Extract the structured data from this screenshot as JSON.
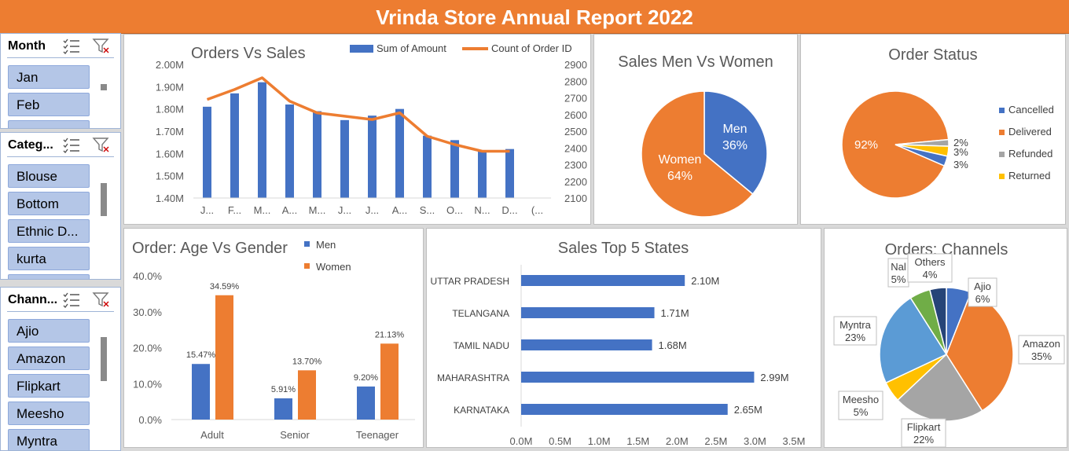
{
  "report_title": "Vrinda Store Annual Report 2022",
  "slicers": {
    "month": {
      "title": "Month",
      "items": [
        "Jan",
        "Feb"
      ]
    },
    "category": {
      "title": "Categ...",
      "items": [
        "Blouse",
        "Bottom",
        "Ethnic D...",
        "kurta"
      ]
    },
    "channel": {
      "title": "Chann...",
      "items": [
        "Ajio",
        "Amazon",
        "Flipkart",
        "Meesho",
        "Myntra"
      ]
    }
  },
  "icons": {
    "multi_select": "multi-select-icon",
    "clear_filter": "clear-filter-icon"
  },
  "colors": {
    "blue": "#4472c4",
    "orange": "#ed7d31",
    "gray": "#a5a5a5",
    "yellow": "#ffc000",
    "lightblue": "#5b9bd5",
    "green": "#70ad47",
    "navy": "#264478"
  },
  "chart_data": [
    {
      "type": "bar",
      "title": "Orders Vs Sales",
      "categories": [
        "J...",
        "F...",
        "M...",
        "A...",
        "M...",
        "J...",
        "J...",
        "A...",
        "S...",
        "O...",
        "N...",
        "D...",
        "(..."
      ],
      "series": [
        {
          "name": "Sum of Amount",
          "type": "bar",
          "axis": "left",
          "values": [
            1.81,
            1.87,
            1.92,
            1.82,
            1.79,
            1.75,
            1.77,
            1.8,
            1.68,
            1.66,
            1.61,
            1.62,
            null
          ]
        },
        {
          "name": "Count of Order ID",
          "type": "line",
          "axis": "right",
          "values": [
            2690,
            2750,
            2820,
            2680,
            2610,
            2590,
            2570,
            2610,
            2470,
            2420,
            2380,
            2380,
            null
          ]
        }
      ],
      "y_left_ticks": [
        "2.00M",
        "1.90M",
        "1.80M",
        "1.70M",
        "1.60M",
        "1.50M",
        "1.40M"
      ],
      "y_left_range": [
        1.4,
        2.0
      ],
      "y_right_ticks": [
        "2900",
        "2800",
        "2700",
        "2600",
        "2500",
        "2400",
        "2300",
        "2200",
        "2100"
      ],
      "y_right_range": [
        2100,
        2900
      ],
      "legend_position": "top"
    },
    {
      "type": "pie",
      "title": "Sales Men Vs Women",
      "labels": [
        "Men",
        "Women"
      ],
      "values": [
        36,
        64
      ],
      "display": [
        "36%",
        "64%"
      ]
    },
    {
      "type": "pie",
      "title": "Order Status",
      "labels": [
        "Cancelled",
        "Delivered",
        "Refunded",
        "Returned"
      ],
      "values": [
        3,
        92,
        2,
        3
      ],
      "display": [
        "3%",
        "92%",
        "2%",
        "3%"
      ],
      "legend_position": "right"
    },
    {
      "type": "bar",
      "title": "Order: Age Vs Gender",
      "categories": [
        "Adult",
        "Senior",
        "Teenager"
      ],
      "series": [
        {
          "name": "Men",
          "values": [
            15.47,
            5.91,
            9.2
          ],
          "labels": [
            "15.47%",
            "5.91%",
            "9.20%"
          ]
        },
        {
          "name": "Women",
          "values": [
            34.59,
            13.7,
            21.13
          ],
          "labels": [
            "34.59%",
            "13.70%",
            "21.13%"
          ]
        }
      ],
      "y_ticks": [
        "40.0%",
        "30.0%",
        "20.0%",
        "10.0%",
        "0.0%"
      ],
      "ylim": [
        0,
        40
      ],
      "legend_position": "top"
    },
    {
      "type": "bar",
      "orientation": "horizontal",
      "title": "Sales Top 5 States",
      "categories": [
        "UTTAR PRADESH",
        "TELANGANA",
        "TAMIL NADU",
        "MAHARASHTRA",
        "KARNATAKA"
      ],
      "values": [
        2.1,
        1.71,
        1.68,
        2.99,
        2.65
      ],
      "labels": [
        "2.10M",
        "1.71M",
        "1.68M",
        "2.99M",
        "2.65M"
      ],
      "x_ticks": [
        "0.0M",
        "0.5M",
        "1.0M",
        "1.5M",
        "2.0M",
        "2.5M",
        "3.0M",
        "3.5M"
      ],
      "xlim": [
        0,
        3.5
      ]
    },
    {
      "type": "pie",
      "title": "Orders: Channels",
      "labels": [
        "Ajio",
        "Amazon",
        "Flipkart",
        "Meesho",
        "Myntra",
        "Nal",
        "Others"
      ],
      "values": [
        6,
        35,
        22,
        5,
        23,
        5,
        4
      ],
      "display": [
        "6%",
        "35%",
        "22%",
        "5%",
        "23%",
        "5%",
        "4%"
      ]
    }
  ]
}
